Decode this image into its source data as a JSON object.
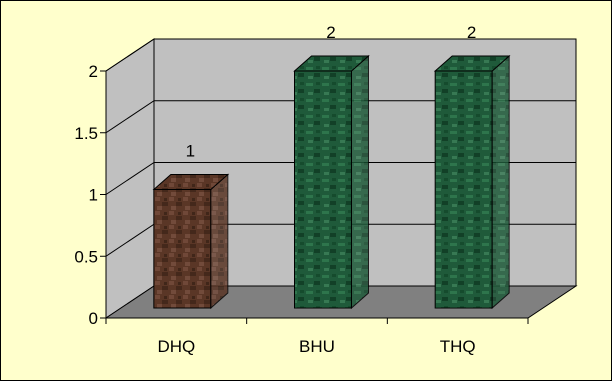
{
  "chart_data": {
    "type": "bar",
    "categories": [
      "DHQ",
      "BHU",
      "THQ"
    ],
    "series": [
      {
        "values": [
          1,
          2,
          2
        ],
        "data_labels": [
          "1",
          "2",
          "2"
        ]
      }
    ],
    "y_ticks": [
      "0",
      "0.5",
      "1",
      "1.5",
      "2"
    ],
    "ylim": [
      0,
      2
    ],
    "title": "",
    "xlabel": "",
    "ylabel": "",
    "style": "3d-column",
    "grid": true,
    "legend": "none",
    "colors": {
      "background": "#ffffcc",
      "wall": "#c0c0c0",
      "floor": "#808080",
      "bars": [
        "#5a3626",
        "#1f5a3a",
        "#1f5a3a"
      ]
    }
  }
}
